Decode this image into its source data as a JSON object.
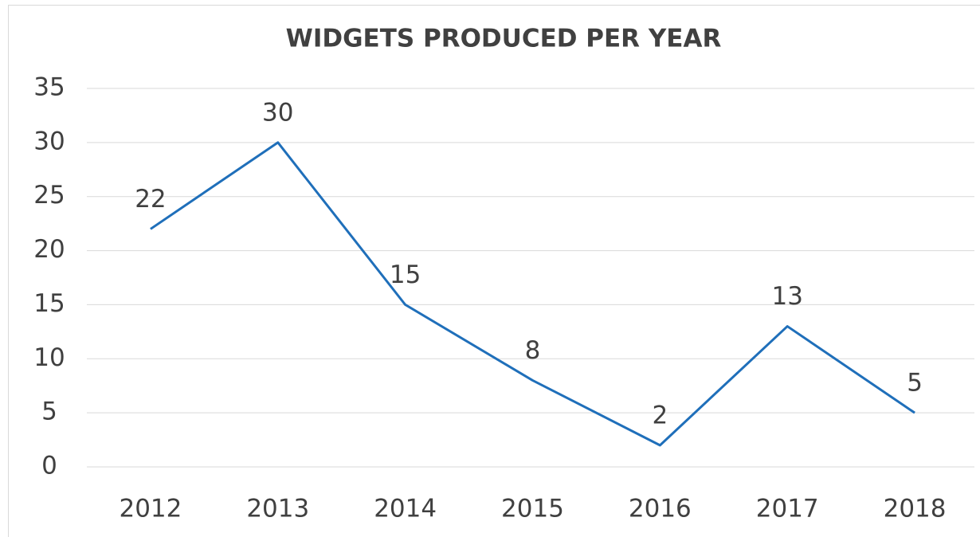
{
  "chart_data": {
    "type": "line",
    "title": "WIDGETS PRODUCED PER YEAR",
    "categories": [
      "2012",
      "2013",
      "2014",
      "2015",
      "2016",
      "2017",
      "2018"
    ],
    "values": [
      22,
      30,
      15,
      8,
      2,
      13,
      5
    ],
    "color": "#1f6fba",
    "ylim": [
      0,
      35
    ],
    "yticks": [
      0,
      5,
      10,
      15,
      20,
      25,
      30,
      35
    ],
    "grid": true
  }
}
